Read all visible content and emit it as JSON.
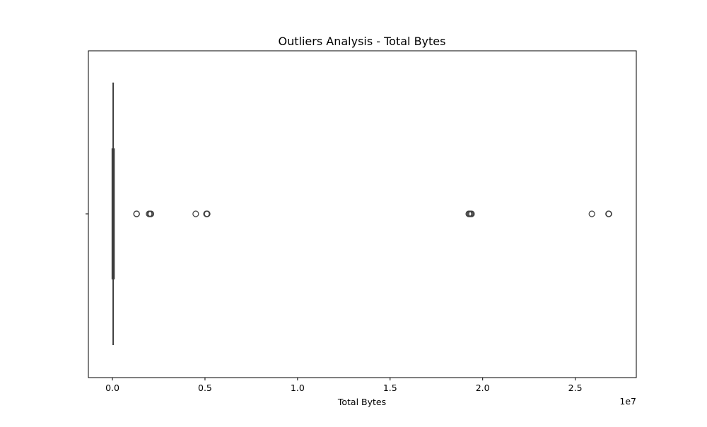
{
  "chart_data": {
    "type": "box",
    "title": "Outliers Analysis - Total Bytes",
    "xlabel": "Total Bytes",
    "ylabel": "",
    "orientation": "horizontal",
    "x_scale_label": "1e7",
    "xlim": [
      -1300000,
      28300000
    ],
    "xticks": [
      0,
      5000000,
      10000000,
      15000000,
      20000000,
      25000000
    ],
    "xtick_labels": [
      "0.0",
      "0.5",
      "1.0",
      "1.5",
      "2.0",
      "2.5"
    ],
    "grid": false,
    "box": {
      "whisker_low": 0,
      "q1": 0,
      "median": 20000,
      "q3": 80000,
      "whisker_high": 80000
    },
    "outliers": [
      1300000,
      1310000,
      1980000,
      2030000,
      2080000,
      4500000,
      5080000,
      5100000,
      5120000,
      19250000,
      19300000,
      19350000,
      19400000,
      25900000,
      26800000,
      26820000
    ],
    "colors": {
      "box_fill": "#3a3a3a",
      "line": "#3f3f3f",
      "outlier_edge": "#3f3f3f"
    }
  }
}
